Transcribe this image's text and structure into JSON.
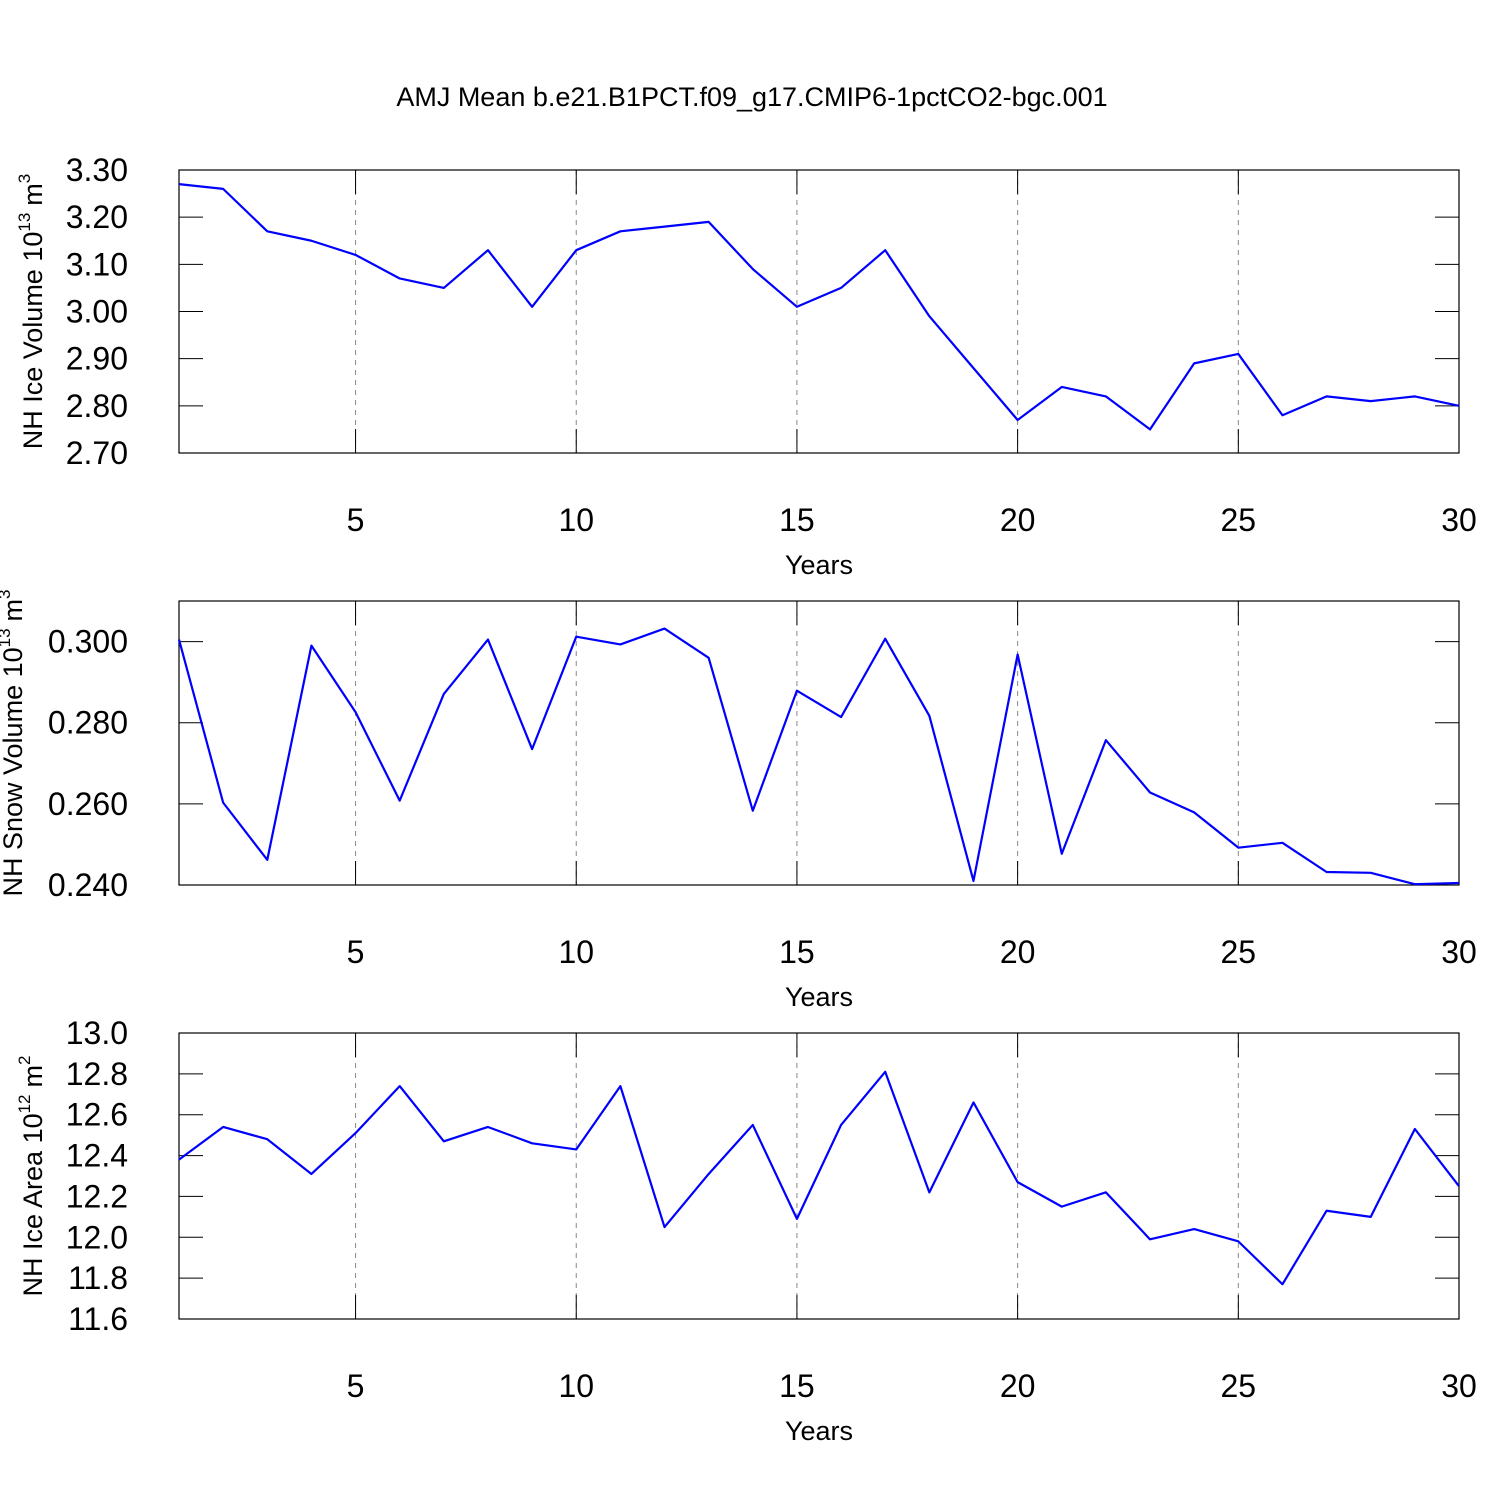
{
  "chart_data": [
    {
      "type": "line",
      "title": "AMJ Mean b.e21.B1PCT.f09_g17.CMIP6-1pctCO2-bgc.001",
      "ylabel": [
        "NH Ice Volume 10",
        "13",
        "m",
        "3"
      ],
      "xlabel": "Years",
      "x": [
        1,
        2,
        3,
        4,
        5,
        6,
        7,
        8,
        9,
        10,
        11,
        12,
        13,
        14,
        15,
        16,
        17,
        18,
        19,
        20,
        21,
        22,
        23,
        24,
        25,
        26,
        27,
        28,
        29,
        30
      ],
      "values": [
        3.27,
        3.26,
        3.17,
        3.15,
        3.12,
        3.07,
        3.05,
        3.13,
        3.01,
        3.13,
        3.17,
        3.18,
        3.19,
        3.09,
        3.01,
        3.05,
        3.13,
        2.99,
        2.88,
        2.77,
        2.84,
        2.82,
        2.75,
        2.89,
        2.91,
        2.78,
        2.82,
        2.81,
        2.82,
        2.8
      ],
      "color": "#0000ff",
      "xlim": [
        1,
        30
      ],
      "xticks": [
        5,
        10,
        15,
        20,
        25,
        30
      ],
      "xgrid": true,
      "ylim": [
        2.7,
        3.3
      ],
      "yticks": [
        {
          "value": 2.7,
          "label": "2.70"
        },
        {
          "value": 2.8,
          "label": "2.80"
        },
        {
          "value": 2.9,
          "label": "2.90"
        },
        {
          "value": 3.0,
          "label": "3.00"
        },
        {
          "value": 3.1,
          "label": "3.10"
        },
        {
          "value": 3.2,
          "label": "3.20"
        },
        {
          "value": 3.3,
          "label": "3.30"
        }
      ]
    },
    {
      "type": "line",
      "ylabel": [
        "NH Snow Volume 10",
        "13",
        "m",
        "3"
      ],
      "xlabel": "Years",
      "x": [
        1,
        2,
        3,
        4,
        5,
        6,
        7,
        8,
        9,
        10,
        11,
        12,
        13,
        14,
        15,
        16,
        17,
        18,
        19,
        20,
        21,
        22,
        23,
        24,
        25,
        26,
        27,
        28,
        29,
        30
      ],
      "values": [
        0.3005,
        0.2603,
        0.2462,
        0.299,
        0.2826,
        0.2608,
        0.2871,
        0.3005,
        0.2735,
        0.3012,
        0.2993,
        0.3032,
        0.296,
        0.2583,
        0.2879,
        0.2814,
        0.3007,
        0.2817,
        0.241,
        0.2968,
        0.2477,
        0.2757,
        0.2628,
        0.2579,
        0.2492,
        0.2504,
        0.2432,
        0.243,
        0.2402,
        0.2405
      ],
      "color": "#0000ff",
      "xlim": [
        1,
        30
      ],
      "xticks": [
        5,
        10,
        15,
        20,
        25,
        30
      ],
      "xgrid": true,
      "ylim": [
        0.24,
        0.31
      ],
      "yticks": [
        {
          "value": 0.24,
          "label": "0.240"
        },
        {
          "value": 0.26,
          "label": "0.260"
        },
        {
          "value": 0.28,
          "label": "0.280"
        },
        {
          "value": 0.3,
          "label": "0.300"
        }
      ]
    },
    {
      "type": "line",
      "ylabel": [
        "NH Ice Area 10",
        "12",
        "m",
        "2"
      ],
      "xlabel": "Years",
      "x": [
        1,
        2,
        3,
        4,
        5,
        6,
        7,
        8,
        9,
        10,
        11,
        12,
        13,
        14,
        15,
        16,
        17,
        18,
        19,
        20,
        21,
        22,
        23,
        24,
        25,
        26,
        27,
        28,
        29,
        30
      ],
      "values": [
        12.38,
        12.54,
        12.48,
        12.31,
        12.51,
        12.74,
        12.47,
        12.54,
        12.46,
        12.43,
        12.74,
        12.05,
        12.31,
        12.55,
        12.09,
        12.55,
        12.81,
        12.22,
        12.66,
        12.27,
        12.15,
        12.22,
        11.99,
        12.04,
        11.98,
        11.77,
        12.13,
        12.1,
        12.53,
        12.25
      ],
      "color": "#0000ff",
      "xlim": [
        1,
        30
      ],
      "xticks": [
        5,
        10,
        15,
        20,
        25,
        30
      ],
      "xgrid": true,
      "ylim": [
        11.6,
        13.0
      ],
      "yticks": [
        11.6,
        11.8,
        {
          "value": 12.0,
          "label": "12.0"
        },
        12.2,
        12.4,
        12.6,
        12.8,
        {
          "value": 13.0,
          "label": "13.0"
        }
      ]
    }
  ]
}
